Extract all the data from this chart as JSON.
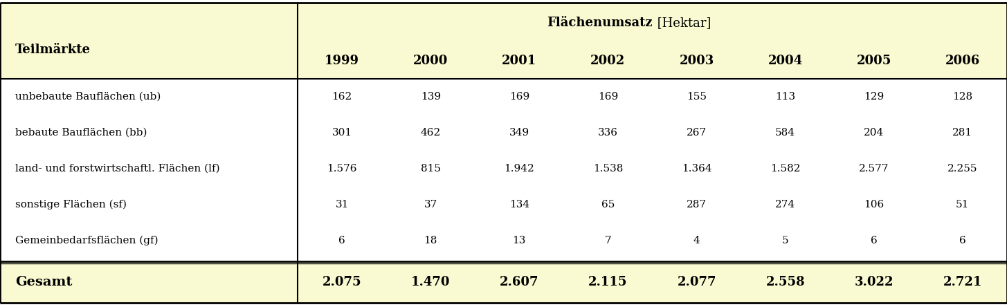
{
  "header_left": "Teilmärkte",
  "header_right_bold": "Flächenumsatz",
  "header_right_normal": " [Hektar]",
  "years": [
    "1999",
    "2000",
    "2001",
    "2002",
    "2003",
    "2004",
    "2005",
    "2006"
  ],
  "rows": [
    {
      "label": "unbebaute Bauflächen (ub)",
      "values": [
        "162",
        "139",
        "169",
        "169",
        "155",
        "113",
        "129",
        "128"
      ]
    },
    {
      "label": "bebaute Bauflächen (bb)",
      "values": [
        "301",
        "462",
        "349",
        "336",
        "267",
        "584",
        "204",
        "281"
      ]
    },
    {
      "label": "land- und forstwirtschaftl. Flächen (lf)",
      "values": [
        "1.576",
        "815",
        "1.942",
        "1.538",
        "1.364",
        "1.582",
        "2.577",
        "2.255"
      ]
    },
    {
      "label": "sonstige Flächen (sf)",
      "values": [
        "31",
        "37",
        "134",
        "65",
        "287",
        "274",
        "106",
        "51"
      ]
    },
    {
      "label": "Gemeinbedarfsflächen (gf)",
      "values": [
        "6",
        "18",
        "13",
        "7",
        "4",
        "5",
        "6",
        "6"
      ]
    }
  ],
  "total_label": "Gesamt",
  "total_values": [
    "2.075",
    "1.470",
    "2.607",
    "2.115",
    "2.077",
    "2.558",
    "3.022",
    "2.721"
  ],
  "header_bg": "#fafad2",
  "body_bg": "#ffffff",
  "border_color": "#000000",
  "fig_width": 14.55,
  "fig_height": 4.44,
  "dpi": 100
}
